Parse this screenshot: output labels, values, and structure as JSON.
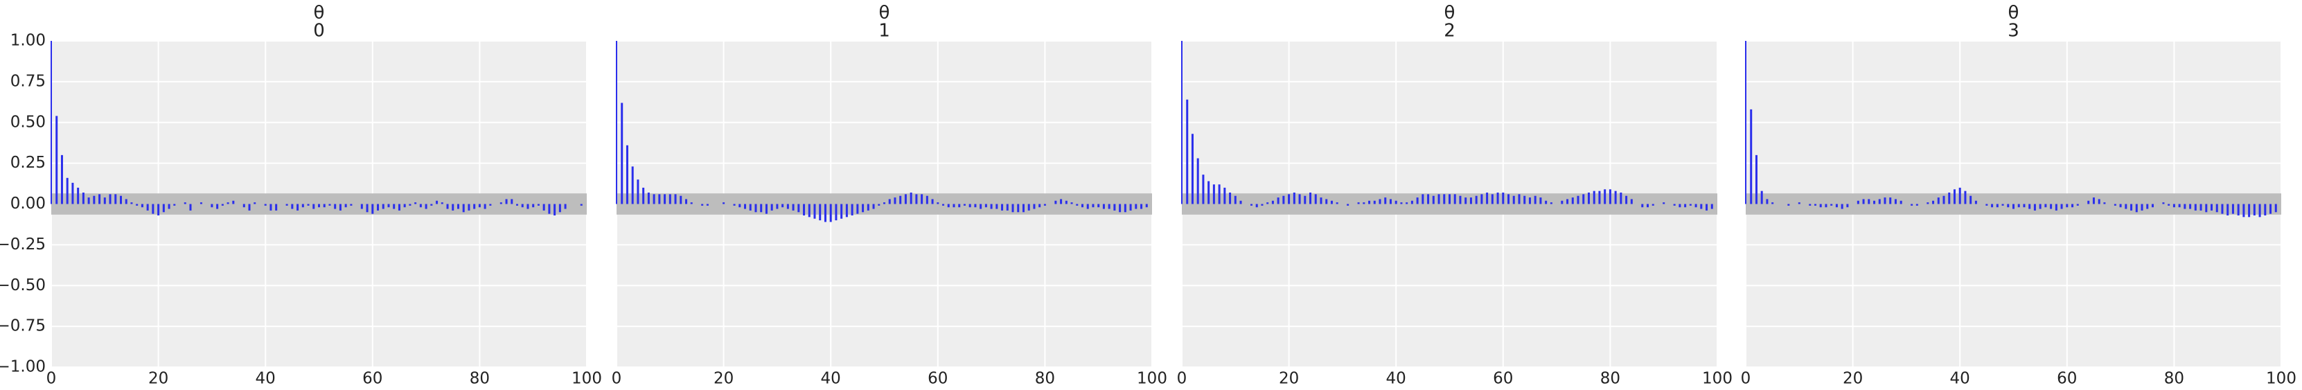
{
  "chart_data": [
    {
      "type": "stem",
      "title": "θ",
      "subtitle": "0",
      "color": "#2a2eec",
      "band_color": "#bdbdbd",
      "confidence_band": [
        -0.065,
        0.065
      ],
      "grid": true,
      "xlim": [
        0,
        100
      ],
      "xticks": [
        0,
        20,
        40,
        60,
        80,
        100
      ],
      "ylim": [
        -1,
        1
      ],
      "yticks": [
        {
          "value": -1,
          "label": "−1.00"
        },
        {
          "value": -0.75,
          "label": "−0.75"
        },
        {
          "value": -0.5,
          "label": "−0.50"
        },
        {
          "value": -0.25,
          "label": "−0.25"
        },
        {
          "value": 0,
          "label": "0.00"
        },
        {
          "value": 0.25,
          "label": "0.25"
        },
        {
          "value": 0.5,
          "label": "0.50"
        },
        {
          "value": 0.75,
          "label": "0.75"
        },
        {
          "value": 1,
          "label": "1.00"
        }
      ],
      "x": [
        0,
        1,
        2,
        3,
        4,
        5,
        6,
        7,
        8,
        9,
        10,
        11,
        12,
        13,
        14,
        15,
        16,
        17,
        18,
        19,
        20,
        21,
        22,
        23,
        24,
        25,
        26,
        27,
        28,
        29,
        30,
        31,
        32,
        33,
        34,
        35,
        36,
        37,
        38,
        39,
        40,
        41,
        42,
        43,
        44,
        45,
        46,
        47,
        48,
        49,
        50,
        51,
        52,
        53,
        54,
        55,
        56,
        57,
        58,
        59,
        60,
        61,
        62,
        63,
        64,
        65,
        66,
        67,
        68,
        69,
        70,
        71,
        72,
        73,
        74,
        75,
        76,
        77,
        78,
        79,
        80,
        81,
        82,
        83,
        84,
        85,
        86,
        87,
        88,
        89,
        90,
        91,
        92,
        93,
        94,
        95,
        96,
        97,
        98,
        99
      ],
      "values": [
        1,
        0.54,
        0.3,
        0.16,
        0.13,
        0.1,
        0.07,
        0.04,
        0.05,
        0.06,
        0.04,
        0.06,
        0.06,
        0.05,
        0.03,
        0.01,
        -0.01,
        -0.02,
        -0.04,
        -0.06,
        -0.07,
        -0.05,
        -0.03,
        -0.01,
        0.0,
        0.01,
        -0.04,
        0.0,
        0.01,
        0.0,
        -0.02,
        -0.03,
        -0.01,
        0.01,
        0.02,
        0.0,
        -0.02,
        -0.04,
        0.01,
        0.0,
        -0.01,
        -0.04,
        -0.04,
        0.0,
        -0.01,
        -0.03,
        -0.04,
        -0.02,
        -0.01,
        -0.03,
        -0.02,
        -0.02,
        -0.01,
        -0.03,
        -0.04,
        -0.02,
        -0.01,
        0.0,
        -0.03,
        -0.05,
        -0.06,
        -0.04,
        -0.03,
        -0.02,
        -0.03,
        -0.04,
        -0.02,
        -0.01,
        0.01,
        -0.02,
        -0.03,
        -0.01,
        0.02,
        0.01,
        -0.03,
        -0.04,
        -0.03,
        -0.05,
        -0.04,
        -0.03,
        -0.02,
        -0.03,
        -0.01,
        0.0,
        0.01,
        0.03,
        0.03,
        -0.01,
        -0.02,
        -0.03,
        -0.02,
        -0.01,
        -0.04,
        -0.06,
        -0.07,
        -0.05,
        -0.03,
        0.0,
        0.0,
        -0.01
      ]
    },
    {
      "type": "stem",
      "title": "θ",
      "subtitle": "1",
      "color": "#2a2eec",
      "band_color": "#bdbdbd",
      "confidence_band": [
        -0.065,
        0.065
      ],
      "grid": true,
      "xlim": [
        0,
        100
      ],
      "xticks": [
        0,
        20,
        40,
        60,
        80,
        100
      ],
      "ylim": [
        -1,
        1
      ],
      "x": [
        0,
        1,
        2,
        3,
        4,
        5,
        6,
        7,
        8,
        9,
        10,
        11,
        12,
        13,
        14,
        15,
        16,
        17,
        18,
        19,
        20,
        21,
        22,
        23,
        24,
        25,
        26,
        27,
        28,
        29,
        30,
        31,
        32,
        33,
        34,
        35,
        36,
        37,
        38,
        39,
        40,
        41,
        42,
        43,
        44,
        45,
        46,
        47,
        48,
        49,
        50,
        51,
        52,
        53,
        54,
        55,
        56,
        57,
        58,
        59,
        60,
        61,
        62,
        63,
        64,
        65,
        66,
        67,
        68,
        69,
        70,
        71,
        72,
        73,
        74,
        75,
        76,
        77,
        78,
        79,
        80,
        81,
        82,
        83,
        84,
        85,
        86,
        87,
        88,
        89,
        90,
        91,
        92,
        93,
        94,
        95,
        96,
        97,
        98,
        99
      ],
      "values": [
        1,
        0.62,
        0.36,
        0.23,
        0.15,
        0.1,
        0.07,
        0.06,
        0.06,
        0.06,
        0.06,
        0.06,
        0.05,
        0.03,
        0.01,
        0.0,
        -0.01,
        -0.01,
        0.0,
        0.0,
        0.01,
        0.0,
        -0.01,
        -0.02,
        -0.03,
        -0.04,
        -0.05,
        -0.05,
        -0.06,
        -0.04,
        -0.03,
        -0.02,
        -0.03,
        -0.04,
        -0.05,
        -0.07,
        -0.08,
        -0.09,
        -0.1,
        -0.11,
        -0.11,
        -0.1,
        -0.09,
        -0.08,
        -0.07,
        -0.06,
        -0.05,
        -0.04,
        -0.03,
        -0.01,
        0.01,
        0.03,
        0.04,
        0.05,
        0.06,
        0.07,
        0.06,
        0.06,
        0.05,
        0.03,
        0.01,
        -0.01,
        -0.02,
        -0.02,
        -0.02,
        -0.01,
        -0.02,
        -0.02,
        -0.03,
        -0.02,
        -0.03,
        -0.03,
        -0.04,
        -0.04,
        -0.05,
        -0.05,
        -0.05,
        -0.04,
        -0.03,
        -0.02,
        -0.01,
        0.0,
        0.02,
        0.03,
        0.02,
        0.01,
        -0.01,
        -0.02,
        -0.03,
        -0.02,
        -0.02,
        -0.03,
        -0.03,
        -0.04,
        -0.05,
        -0.05,
        -0.04,
        -0.03,
        -0.03,
        -0.02
      ]
    },
    {
      "type": "stem",
      "title": "θ",
      "subtitle": "2",
      "color": "#2a2eec",
      "band_color": "#bdbdbd",
      "confidence_band": [
        -0.065,
        0.065
      ],
      "grid": true,
      "xlim": [
        0,
        100
      ],
      "xticks": [
        0,
        20,
        40,
        60,
        80,
        100
      ],
      "ylim": [
        -1,
        1
      ],
      "x": [
        0,
        1,
        2,
        3,
        4,
        5,
        6,
        7,
        8,
        9,
        10,
        11,
        12,
        13,
        14,
        15,
        16,
        17,
        18,
        19,
        20,
        21,
        22,
        23,
        24,
        25,
        26,
        27,
        28,
        29,
        30,
        31,
        32,
        33,
        34,
        35,
        36,
        37,
        38,
        39,
        40,
        41,
        42,
        43,
        44,
        45,
        46,
        47,
        48,
        49,
        50,
        51,
        52,
        53,
        54,
        55,
        56,
        57,
        58,
        59,
        60,
        61,
        62,
        63,
        64,
        65,
        66,
        67,
        68,
        69,
        70,
        71,
        72,
        73,
        74,
        75,
        76,
        77,
        78,
        79,
        80,
        81,
        82,
        83,
        84,
        85,
        86,
        87,
        88,
        89,
        90,
        91,
        92,
        93,
        94,
        95,
        96,
        97,
        98,
        99
      ],
      "values": [
        1,
        0.64,
        0.43,
        0.28,
        0.18,
        0.14,
        0.12,
        0.12,
        0.1,
        0.07,
        0.05,
        0.02,
        0.0,
        -0.01,
        -0.02,
        -0.01,
        0.01,
        0.02,
        0.04,
        0.05,
        0.06,
        0.07,
        0.06,
        0.05,
        0.07,
        0.06,
        0.04,
        0.03,
        0.02,
        0.01,
        0.0,
        -0.01,
        0.0,
        0.01,
        0.01,
        0.02,
        0.02,
        0.03,
        0.04,
        0.03,
        0.02,
        0.01,
        0.01,
        0.02,
        0.04,
        0.06,
        0.06,
        0.05,
        0.06,
        0.06,
        0.06,
        0.06,
        0.05,
        0.04,
        0.04,
        0.05,
        0.06,
        0.07,
        0.06,
        0.07,
        0.07,
        0.06,
        0.05,
        0.06,
        0.05,
        0.04,
        0.05,
        0.04,
        0.02,
        0.01,
        0.0,
        0.02,
        0.03,
        0.04,
        0.05,
        0.06,
        0.07,
        0.08,
        0.08,
        0.09,
        0.09,
        0.08,
        0.07,
        0.05,
        0.03,
        0.0,
        -0.02,
        -0.02,
        -0.01,
        0.0,
        0.01,
        0.0,
        -0.01,
        -0.02,
        -0.02,
        -0.01,
        -0.02,
        -0.03,
        -0.04,
        -0.03
      ]
    },
    {
      "type": "stem",
      "title": "θ",
      "subtitle": "3",
      "color": "#2a2eec",
      "band_color": "#bdbdbd",
      "confidence_band": [
        -0.065,
        0.065
      ],
      "grid": true,
      "xlim": [
        0,
        100
      ],
      "xticks": [
        0,
        20,
        40,
        60,
        80,
        100
      ],
      "ylim": [
        -1,
        1
      ],
      "x": [
        0,
        1,
        2,
        3,
        4,
        5,
        6,
        7,
        8,
        9,
        10,
        11,
        12,
        13,
        14,
        15,
        16,
        17,
        18,
        19,
        20,
        21,
        22,
        23,
        24,
        25,
        26,
        27,
        28,
        29,
        30,
        31,
        32,
        33,
        34,
        35,
        36,
        37,
        38,
        39,
        40,
        41,
        42,
        43,
        44,
        45,
        46,
        47,
        48,
        49,
        50,
        51,
        52,
        53,
        54,
        55,
        56,
        57,
        58,
        59,
        60,
        61,
        62,
        63,
        64,
        65,
        66,
        67,
        68,
        69,
        70,
        71,
        72,
        73,
        74,
        75,
        76,
        77,
        78,
        79,
        80,
        81,
        82,
        83,
        84,
        85,
        86,
        87,
        88,
        89,
        90,
        91,
        92,
        93,
        94,
        95,
        96,
        97,
        98,
        99
      ],
      "values": [
        1,
        0.58,
        0.3,
        0.08,
        0.03,
        0.01,
        0.0,
        0.0,
        -0.01,
        0.0,
        0.01,
        0.0,
        -0.01,
        -0.01,
        -0.02,
        -0.02,
        -0.01,
        -0.02,
        -0.03,
        -0.02,
        0.0,
        0.02,
        0.03,
        0.03,
        0.02,
        0.03,
        0.04,
        0.04,
        0.03,
        0.02,
        0.0,
        -0.01,
        -0.01,
        0.0,
        0.01,
        0.02,
        0.04,
        0.05,
        0.07,
        0.09,
        0.1,
        0.08,
        0.05,
        0.02,
        0.0,
        -0.01,
        -0.02,
        -0.02,
        -0.01,
        -0.02,
        -0.03,
        -0.02,
        -0.02,
        -0.03,
        -0.04,
        -0.03,
        -0.02,
        -0.03,
        -0.04,
        -0.03,
        -0.02,
        -0.02,
        -0.01,
        0.0,
        0.02,
        0.04,
        0.03,
        0.01,
        0.0,
        -0.01,
        -0.02,
        -0.03,
        -0.04,
        -0.05,
        -0.04,
        -0.03,
        -0.02,
        0.0,
        0.01,
        -0.01,
        -0.02,
        -0.02,
        -0.03,
        -0.03,
        -0.04,
        -0.04,
        -0.05,
        -0.04,
        -0.05,
        -0.06,
        -0.07,
        -0.06,
        -0.07,
        -0.08,
        -0.08,
        -0.07,
        -0.08,
        -0.07,
        -0.06,
        -0.05
      ]
    }
  ]
}
